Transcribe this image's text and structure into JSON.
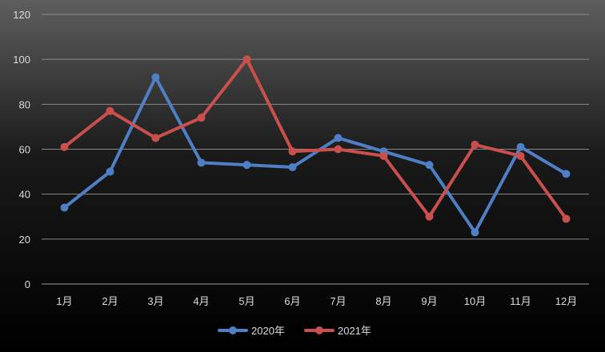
{
  "chart_data": {
    "type": "line",
    "title": "",
    "xlabel": "",
    "ylabel": "",
    "ylim": [
      0,
      120
    ],
    "yticks": [
      0,
      20,
      40,
      60,
      80,
      100,
      120
    ],
    "grid": true,
    "legend_position": "bottom-center",
    "categories": [
      "1月",
      "2月",
      "3月",
      "4月",
      "5月",
      "6月",
      "7月",
      "8月",
      "9月",
      "10月",
      "11月",
      "12月"
    ],
    "series": [
      {
        "name": "2020年",
        "color": "#4f7fc4",
        "values": [
          34,
          50,
          92,
          54,
          53,
          52,
          65,
          59,
          53,
          23,
          61,
          49
        ]
      },
      {
        "name": "2021年",
        "color": "#c9504d",
        "values": [
          61,
          77,
          65,
          74,
          100,
          59,
          60,
          57,
          30,
          62,
          57,
          29
        ]
      }
    ]
  }
}
